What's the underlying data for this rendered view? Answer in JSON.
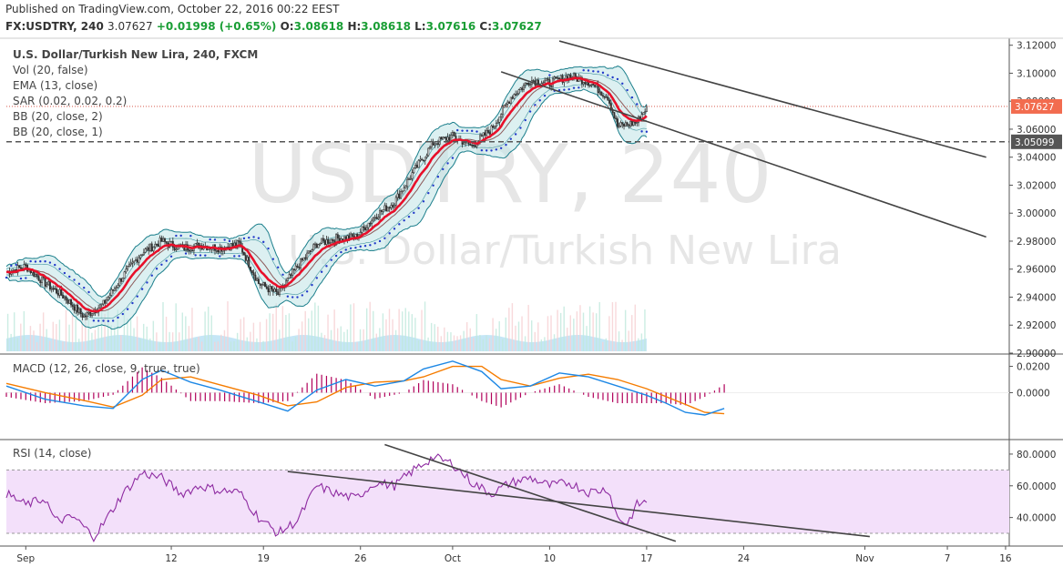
{
  "header": {
    "published": "Published on TradingView.com, October 22, 2016 00:22 EEST",
    "symbol": "FX:USDTRY, 240",
    "price": "3.07627",
    "change": "+0.01998 (+0.65%)",
    "o_label": "O:",
    "o_value": "3.08618",
    "h_label": "H:",
    "h_value": "3.08618",
    "l_label": "L:",
    "l_value": "3.07616",
    "c_label": "C:",
    "c_value": "3.07627"
  },
  "legend": {
    "title": "U.S. Dollar/Turkish New Lira, 240, FXCM",
    "items": [
      "Vol (20, false)",
      "EMA (13, close)",
      "SAR (0.02, 0.02, 0.2)",
      "BB (20, close, 2)",
      "BB (20, close, 1)"
    ]
  },
  "watermark": {
    "main": "USDTRY, 240",
    "sub": "U.S. Dollar/Turkish New Lira"
  },
  "price_axis": {
    "ticks": [
      "3.12000",
      "3.10000",
      "3.08000",
      "3.06000",
      "3.04000",
      "3.02000",
      "3.00000",
      "2.98000",
      "2.96000",
      "2.94000",
      "2.92000",
      "2.90000"
    ],
    "last_price_label": "3.07627",
    "level_label": "3.05099"
  },
  "macd_panel": {
    "label": "MACD (12, 26, close, 9, true, true)",
    "ticks": [
      "0.0200",
      "0.0000"
    ]
  },
  "rsi_panel": {
    "label": "RSI (14, close)",
    "ticks": [
      "80.0000",
      "60.0000",
      "40.0000"
    ]
  },
  "time_axis": {
    "labels": [
      "Sep",
      "12",
      "19",
      "26",
      "Oct",
      "10",
      "17",
      "24",
      "Nov",
      "7",
      "16"
    ]
  },
  "colors": {
    "up_candle": "#26a69a",
    "down_candle": "#ef5350",
    "ema": "#e8102a",
    "bb": "#1c7f8c",
    "bb_fill": "#bfe3e6",
    "sar": "#2139c9",
    "macd_line": "#1e88e5",
    "signal_line": "#f57c00",
    "hist": "#b0005a",
    "rsi_line": "#8e2ba1",
    "rsi_band": "#f3e0fa",
    "last_price_bg": "#f26c4f",
    "trendline": "#444444"
  },
  "chart_data": [
    {
      "type": "candlestick",
      "title": "U.S. Dollar/Turkish New Lira, 240, FXCM",
      "ylim": [
        2.9,
        3.125
      ],
      "x_range_days_labels": [
        "Sep",
        "12",
        "19",
        "26",
        "Oct",
        "10",
        "17",
        "24",
        "Nov",
        "7",
        "16"
      ],
      "anchors": [
        {
          "x": 0,
          "y": 2.958
        },
        {
          "x": 2,
          "y": 2.962
        },
        {
          "x": 4,
          "y": 2.95
        },
        {
          "x": 6,
          "y": 2.94
        },
        {
          "x": 8,
          "y": 2.926
        },
        {
          "x": 10,
          "y": 2.935
        },
        {
          "x": 12,
          "y": 2.955
        },
        {
          "x": 14,
          "y": 2.972
        },
        {
          "x": 16,
          "y": 2.98
        },
        {
          "x": 18,
          "y": 2.975
        },
        {
          "x": 20,
          "y": 2.977
        },
        {
          "x": 22,
          "y": 2.975
        },
        {
          "x": 24,
          "y": 2.978
        },
        {
          "x": 26,
          "y": 2.95
        },
        {
          "x": 28,
          "y": 2.942
        },
        {
          "x": 30,
          "y": 2.962
        },
        {
          "x": 32,
          "y": 2.978
        },
        {
          "x": 34,
          "y": 2.982
        },
        {
          "x": 36,
          "y": 2.983
        },
        {
          "x": 38,
          "y": 2.998
        },
        {
          "x": 40,
          "y": 3.008
        },
        {
          "x": 42,
          "y": 3.03
        },
        {
          "x": 44,
          "y": 3.05
        },
        {
          "x": 46,
          "y": 3.055
        },
        {
          "x": 48,
          "y": 3.048
        },
        {
          "x": 50,
          "y": 3.06
        },
        {
          "x": 52,
          "y": 3.083
        },
        {
          "x": 54,
          "y": 3.095
        },
        {
          "x": 56,
          "y": 3.093
        },
        {
          "x": 58,
          "y": 3.098
        },
        {
          "x": 60,
          "y": 3.094
        },
        {
          "x": 62,
          "y": 3.083
        },
        {
          "x": 63,
          "y": 3.062
        },
        {
          "x": 65,
          "y": 3.065
        },
        {
          "x": 66,
          "y": 3.076
        }
      ],
      "last_close": 3.07627,
      "horizontal_level": 3.05099,
      "trendlines": [
        {
          "from": [
            57,
            3.123
          ],
          "to": [
            101,
            3.04
          ]
        },
        {
          "from": [
            51,
            3.101
          ],
          "to": [
            101,
            2.983
          ]
        }
      ]
    },
    {
      "type": "line",
      "title": "MACD (12, 26, close, 9, true, true)",
      "ylim": [
        -0.035,
        0.028
      ],
      "macd": [
        {
          "x": 0,
          "y": 0.005
        },
        {
          "x": 4,
          "y": -0.005
        },
        {
          "x": 8,
          "y": -0.01
        },
        {
          "x": 11,
          "y": -0.012
        },
        {
          "x": 14,
          "y": 0.01
        },
        {
          "x": 16,
          "y": 0.017
        },
        {
          "x": 19,
          "y": 0.008
        },
        {
          "x": 22,
          "y": 0.002
        },
        {
          "x": 26,
          "y": -0.007
        },
        {
          "x": 29,
          "y": -0.014
        },
        {
          "x": 32,
          "y": 0.002
        },
        {
          "x": 35,
          "y": 0.01
        },
        {
          "x": 38,
          "y": 0.005
        },
        {
          "x": 41,
          "y": 0.009
        },
        {
          "x": 43,
          "y": 0.018
        },
        {
          "x": 46,
          "y": 0.024
        },
        {
          "x": 49,
          "y": 0.016
        },
        {
          "x": 51,
          "y": 0.003
        },
        {
          "x": 54,
          "y": 0.005
        },
        {
          "x": 57,
          "y": 0.015
        },
        {
          "x": 60,
          "y": 0.012
        },
        {
          "x": 63,
          "y": 0.005
        },
        {
          "x": 66,
          "y": -0.002
        },
        {
          "x": 68,
          "y": -0.008
        },
        {
          "x": 70,
          "y": -0.015
        },
        {
          "x": 72,
          "y": -0.017
        },
        {
          "x": 74,
          "y": -0.012
        }
      ],
      "signal": [
        {
          "x": 0,
          "y": 0.007
        },
        {
          "x": 4,
          "y": 0.0
        },
        {
          "x": 8,
          "y": -0.006
        },
        {
          "x": 11,
          "y": -0.011
        },
        {
          "x": 14,
          "y": -0.002
        },
        {
          "x": 16,
          "y": 0.01
        },
        {
          "x": 19,
          "y": 0.012
        },
        {
          "x": 22,
          "y": 0.006
        },
        {
          "x": 26,
          "y": -0.002
        },
        {
          "x": 29,
          "y": -0.01
        },
        {
          "x": 32,
          "y": -0.007
        },
        {
          "x": 35,
          "y": 0.004
        },
        {
          "x": 38,
          "y": 0.008
        },
        {
          "x": 41,
          "y": 0.009
        },
        {
          "x": 43,
          "y": 0.012
        },
        {
          "x": 46,
          "y": 0.02
        },
        {
          "x": 49,
          "y": 0.02
        },
        {
          "x": 51,
          "y": 0.01
        },
        {
          "x": 54,
          "y": 0.005
        },
        {
          "x": 57,
          "y": 0.011
        },
        {
          "x": 60,
          "y": 0.014
        },
        {
          "x": 63,
          "y": 0.01
        },
        {
          "x": 66,
          "y": 0.003
        },
        {
          "x": 68,
          "y": -0.003
        },
        {
          "x": 70,
          "y": -0.009
        },
        {
          "x": 72,
          "y": -0.015
        },
        {
          "x": 74,
          "y": -0.016
        }
      ]
    },
    {
      "type": "line",
      "title": "RSI (14, close)",
      "ylim": [
        22,
        88
      ],
      "bands": [
        30,
        70
      ],
      "rsi": [
        {
          "x": 0,
          "y": 55
        },
        {
          "x": 2,
          "y": 48
        },
        {
          "x": 4,
          "y": 52
        },
        {
          "x": 5,
          "y": 38
        },
        {
          "x": 7,
          "y": 40
        },
        {
          "x": 9,
          "y": 28
        },
        {
          "x": 10,
          "y": 36
        },
        {
          "x": 12,
          "y": 55
        },
        {
          "x": 14,
          "y": 68
        },
        {
          "x": 16,
          "y": 65
        },
        {
          "x": 18,
          "y": 55
        },
        {
          "x": 20,
          "y": 60
        },
        {
          "x": 22,
          "y": 57
        },
        {
          "x": 24,
          "y": 56
        },
        {
          "x": 26,
          "y": 40
        },
        {
          "x": 28,
          "y": 30
        },
        {
          "x": 30,
          "y": 38
        },
        {
          "x": 32,
          "y": 60
        },
        {
          "x": 34,
          "y": 55
        },
        {
          "x": 36,
          "y": 52
        },
        {
          "x": 38,
          "y": 62
        },
        {
          "x": 40,
          "y": 60
        },
        {
          "x": 42,
          "y": 70
        },
        {
          "x": 44,
          "y": 78
        },
        {
          "x": 46,
          "y": 74
        },
        {
          "x": 48,
          "y": 62
        },
        {
          "x": 50,
          "y": 55
        },
        {
          "x": 52,
          "y": 62
        },
        {
          "x": 54,
          "y": 65
        },
        {
          "x": 56,
          "y": 60
        },
        {
          "x": 58,
          "y": 62
        },
        {
          "x": 60,
          "y": 56
        },
        {
          "x": 62,
          "y": 58
        },
        {
          "x": 63,
          "y": 40
        },
        {
          "x": 64,
          "y": 36
        },
        {
          "x": 65,
          "y": 48
        },
        {
          "x": 66,
          "y": 50
        }
      ],
      "trendlines": [
        {
          "from": [
            39,
            86
          ],
          "to": [
            69,
            25
          ]
        },
        {
          "from": [
            29,
            69
          ],
          "to": [
            89,
            28
          ]
        }
      ]
    }
  ]
}
